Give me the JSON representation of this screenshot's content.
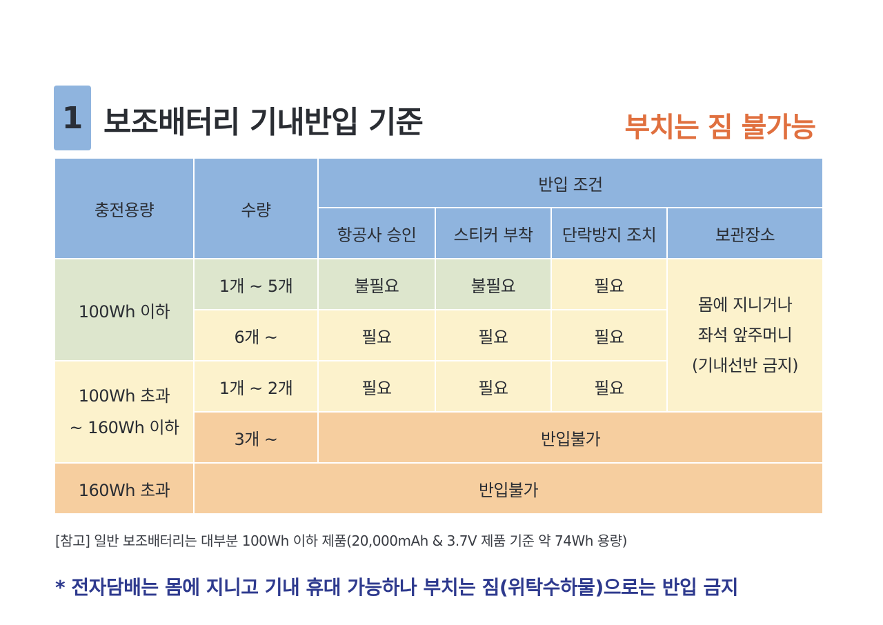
{
  "header": {
    "number": "1",
    "title": "보조배터리 기내반입 기준",
    "notice": "부치는 짐 불가능"
  },
  "table": {
    "col_capacity": "충전용량",
    "col_quantity": "수량",
    "col_conditions": "반입 조건",
    "sub_airline": "항공사 승인",
    "sub_sticker": "스티커 부착",
    "sub_shortcircuit": "단락방지 조치",
    "sub_storage": "보관장소",
    "rows": [
      {
        "capacity": "100Wh 이하",
        "quantity": "1개 ~ 5개",
        "airline": "불필요",
        "sticker": "불필요",
        "shortcircuit": "필요"
      },
      {
        "quantity": "6개 ~",
        "airline": "필요",
        "sticker": "필요",
        "shortcircuit": "필요"
      },
      {
        "capacity_line1": "100Wh 초과",
        "capacity_line2": "~ 160Wh 이하",
        "quantity": "1개 ~ 2개",
        "airline": "필요",
        "sticker": "필요",
        "shortcircuit": "필요"
      },
      {
        "quantity": "3개 ~",
        "result": "반입불가"
      },
      {
        "capacity": "160Wh 초과",
        "result": "반입불가"
      }
    ],
    "storage_line1": "몸에 지니거나",
    "storage_line2": "좌석 앞주머니",
    "storage_line3": "(기내선반 금지)"
  },
  "footer": {
    "reference": "[참고] 일반 보조배터리는 대부분 100Wh 이하 제품(20,000mAh & 3.7V 제품 기준 약 74Wh 용량)",
    "warning": "* 전자담배는 몸에 지니고 기내 휴대 가능하나 부치는 짐(위탁수하물)으로는 반입 금지"
  }
}
